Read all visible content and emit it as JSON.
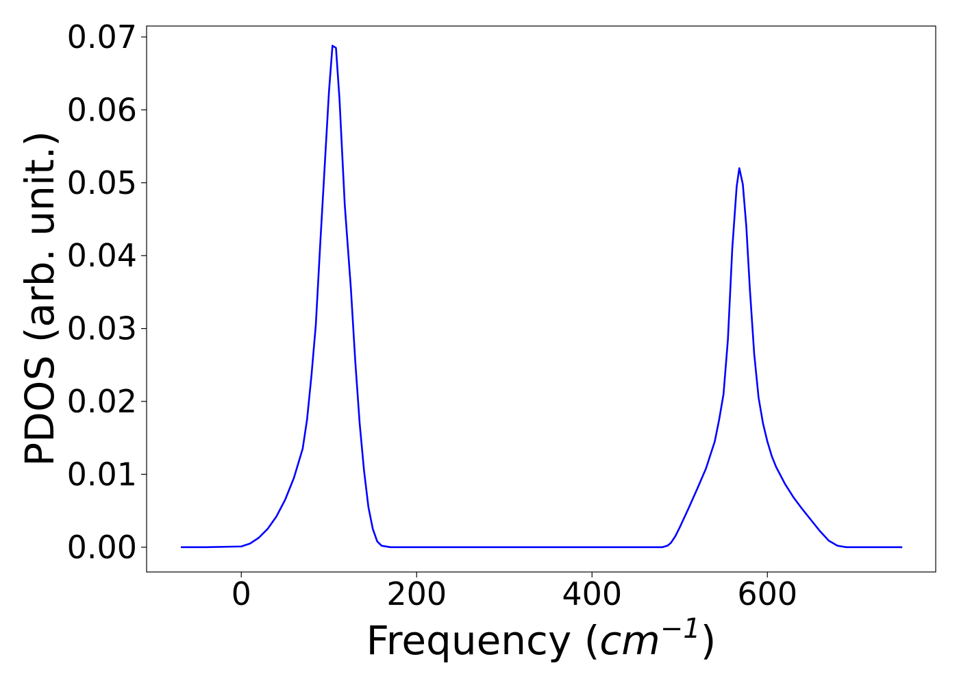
{
  "chart_data": {
    "type": "line",
    "title": "",
    "xlabel": "Frequency (",
    "xlabel_math": "cm",
    "xlabel_sup": "−1",
    "xlabel_close": ")",
    "ylabel": "PDOS (arb. unit.)",
    "xlim": [
      -108,
      792
    ],
    "ylim": [
      -0.0034,
      0.0715
    ],
    "xticks": [
      0,
      200,
      400,
      600
    ],
    "xtick_labels": [
      "0",
      "200",
      "400",
      "600"
    ],
    "yticks": [
      0.0,
      0.01,
      0.02,
      0.03,
      0.04,
      0.05,
      0.06,
      0.07
    ],
    "ytick_labels": [
      "0.00",
      "0.01",
      "0.02",
      "0.03",
      "0.04",
      "0.05",
      "0.06",
      "0.07"
    ],
    "grid": false,
    "legend": "none",
    "line_color": "#0000ff",
    "series": [
      {
        "x": [
          -68,
          -40,
          0,
          10,
          20,
          30,
          40,
          50,
          60,
          70,
          75,
          80,
          85,
          90,
          95,
          100,
          104,
          108,
          112,
          118,
          125,
          130,
          135,
          140,
          145,
          150,
          155,
          160,
          170,
          200,
          300,
          400,
          480,
          486,
          490,
          495,
          500,
          510,
          520,
          530,
          540,
          545,
          550,
          555,
          560,
          565,
          568,
          572,
          576,
          580,
          585,
          590,
          595,
          600,
          605,
          610,
          620,
          630,
          640,
          650,
          660,
          670,
          680,
          685,
          690,
          695,
          700,
          710,
          753
        ],
        "y": [
          0,
          0,
          0.0001,
          0.0005,
          0.0013,
          0.0025,
          0.0042,
          0.0065,
          0.0095,
          0.0135,
          0.0175,
          0.0235,
          0.0305,
          0.0415,
          0.052,
          0.0625,
          0.0688,
          0.0685,
          0.0615,
          0.047,
          0.0355,
          0.0255,
          0.017,
          0.0105,
          0.0055,
          0.0025,
          0.0008,
          0.0002,
          0,
          0,
          0,
          0,
          0,
          0.0002,
          0.0006,
          0.0015,
          0.0027,
          0.0053,
          0.008,
          0.0108,
          0.0145,
          0.0175,
          0.021,
          0.0285,
          0.041,
          0.0495,
          0.052,
          0.0498,
          0.044,
          0.0355,
          0.0265,
          0.0205,
          0.017,
          0.0145,
          0.0125,
          0.011,
          0.0087,
          0.0068,
          0.0052,
          0.0037,
          0.0022,
          0.0009,
          0.0002,
          0.0001,
          0,
          0,
          0,
          0,
          0
        ]
      }
    ]
  }
}
